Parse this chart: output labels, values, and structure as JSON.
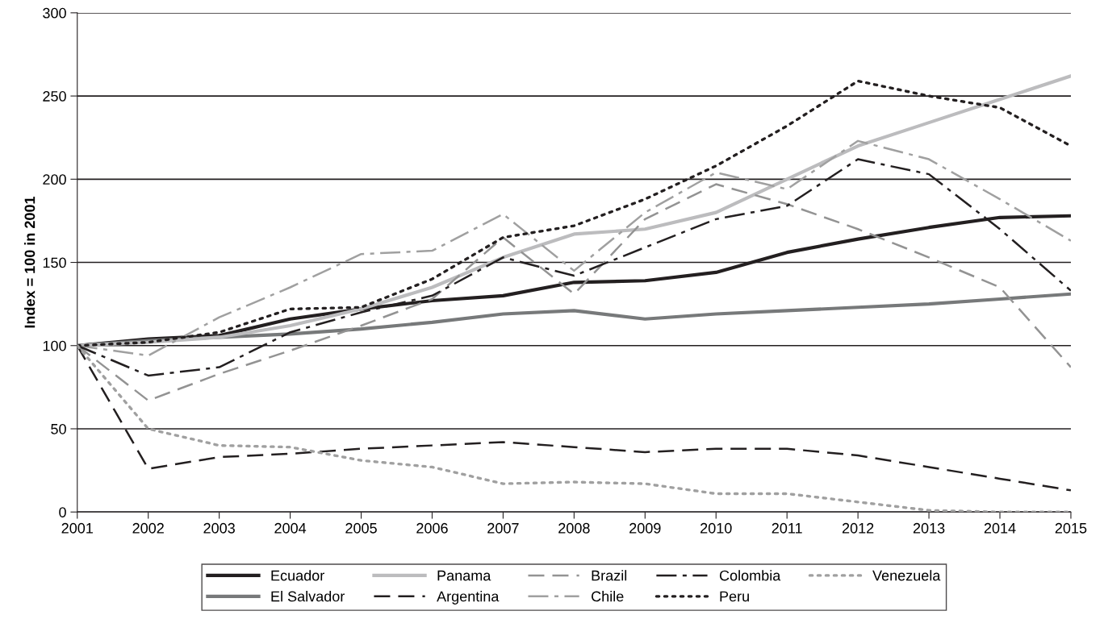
{
  "chart_data": {
    "type": "line",
    "ylabel": "Index = 100 in 2001",
    "x": [
      2001,
      2002,
      2003,
      2004,
      2005,
      2006,
      2007,
      2008,
      2009,
      2010,
      2011,
      2012,
      2013,
      2014,
      2015
    ],
    "xlim": [
      2001,
      2015
    ],
    "xticks": [
      2001,
      2002,
      2003,
      2004,
      2005,
      2006,
      2007,
      2008,
      2009,
      2010,
      2011,
      2012,
      2013,
      2014,
      2015
    ],
    "ylim": [
      0,
      300
    ],
    "yticks": [
      0,
      50,
      100,
      150,
      200,
      250,
      300
    ],
    "grid": "y",
    "legend": "bottom",
    "marker": "none",
    "series": [
      {
        "name": "Ecuador",
        "color": "#231f20",
        "line_style": "solid",
        "values": [
          100,
          104,
          106,
          116,
          122,
          127,
          130,
          138,
          139,
          144,
          156,
          164,
          171,
          177,
          178
        ]
      },
      {
        "name": "El Salvador",
        "color": "#77797a",
        "line_style": "solid",
        "values": [
          100,
          103,
          105,
          107,
          110,
          114,
          119,
          121,
          116,
          119,
          121,
          123,
          125,
          128,
          131
        ]
      },
      {
        "name": "Panama",
        "color": "#bcbcbe",
        "line_style": "solid",
        "values": [
          100,
          102,
          105,
          112,
          122,
          135,
          153,
          167,
          170,
          180,
          200,
          220,
          234,
          248,
          262
        ]
      },
      {
        "name": "Argentina",
        "color": "#231f20",
        "line_style": "dashed",
        "values": [
          100,
          26,
          33,
          35,
          38,
          40,
          42,
          39,
          36,
          38,
          38,
          34,
          27,
          20,
          13
        ]
      },
      {
        "name": "Brazil",
        "color": "#939393",
        "line_style": "dashed",
        "values": [
          100,
          67,
          83,
          97,
          112,
          128,
          165,
          131,
          176,
          197,
          185,
          170,
          153,
          135,
          87
        ]
      },
      {
        "name": "Chile",
        "color": "#a0a0a0",
        "line_style": "dashdot",
        "values": [
          100,
          94,
          117,
          135,
          155,
          157,
          179,
          145,
          180,
          204,
          194,
          223,
          212,
          188,
          163
        ]
      },
      {
        "name": "Colombia",
        "color": "#231f20",
        "line_style": "dashdot",
        "values": [
          100,
          82,
          87,
          108,
          120,
          130,
          153,
          142,
          159,
          176,
          184,
          212,
          203,
          170,
          133
        ]
      },
      {
        "name": "Peru",
        "color": "#231f20",
        "line_style": "dotted",
        "values": [
          100,
          102,
          108,
          122,
          123,
          140,
          165,
          172,
          188,
          208,
          232,
          259,
          250,
          243,
          220
        ]
      },
      {
        "name": "Venezuela",
        "color": "#a0a0a0",
        "line_style": "dotted",
        "values": [
          100,
          50,
          40,
          39,
          31,
          27,
          17,
          18,
          17,
          11,
          11,
          6,
          1,
          0,
          0
        ]
      }
    ]
  }
}
